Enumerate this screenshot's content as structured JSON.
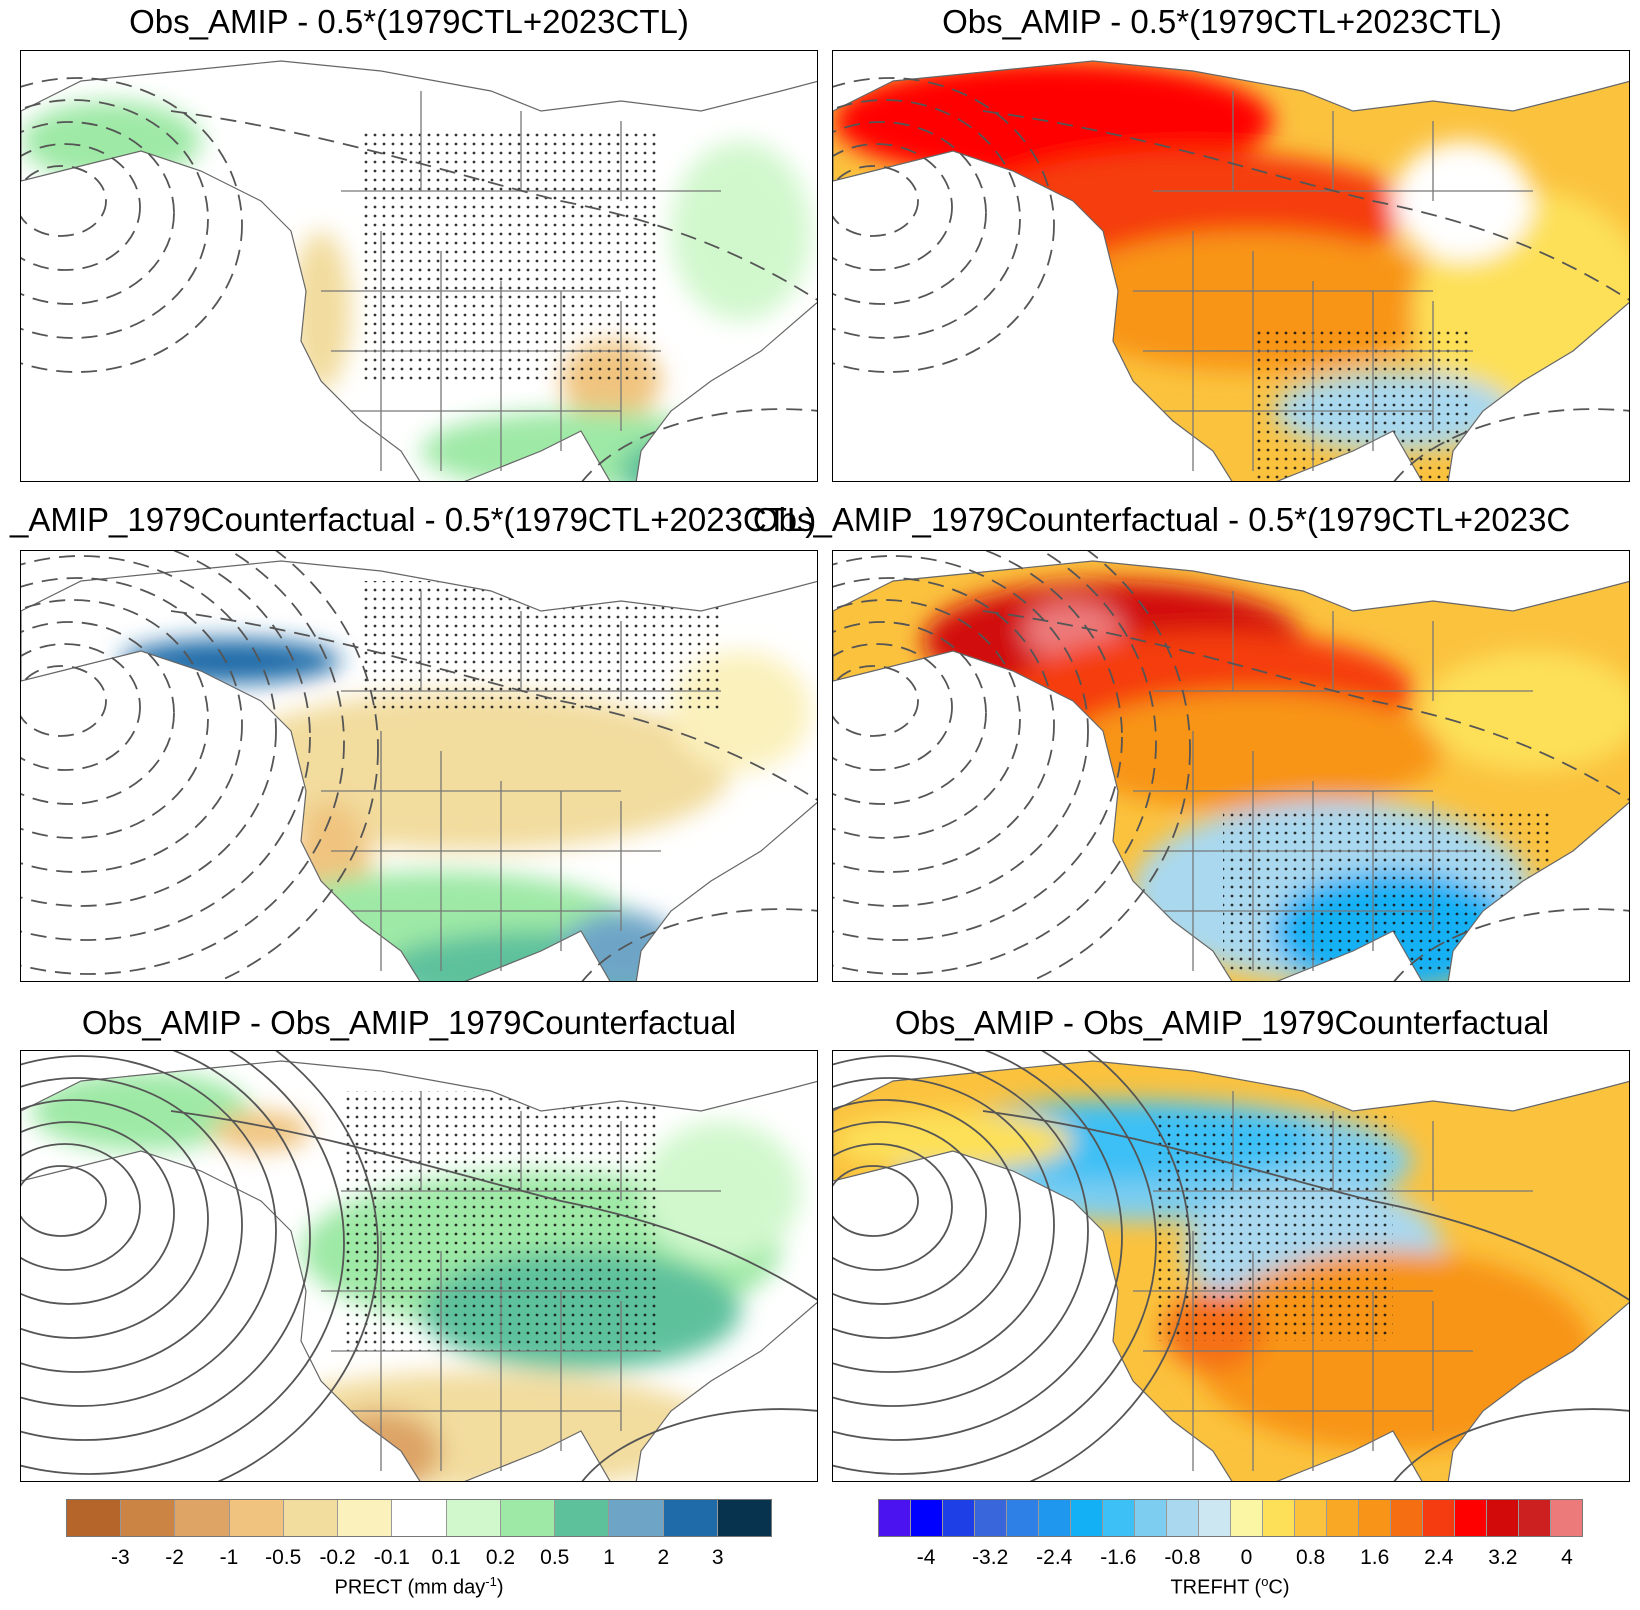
{
  "titles": {
    "r1_left": "Obs_AMIP - 0.5*(1979CTL+2023CTL)",
    "r1_right": "Obs_AMIP - 0.5*(1979CTL+2023CTL)",
    "r2_left": "_AMIP_1979Counterfactual - 0.5*(1979CTL+2023CTL)",
    "r2_right": "Obs_AMIP_1979Counterfactual - 0.5*(1979CTL+2023C",
    "r3_left": "Obs_AMIP - Obs_AMIP_1979Counterfactual",
    "r3_right": "Obs_AMIP - Obs_AMIP_1979Counterfactual"
  },
  "legend_precip": {
    "label_main": "PRECT (mm day",
    "label_sup": "-1",
    "label_end": ")",
    "colors": [
      "#b5652a",
      "#cc8444",
      "#dda466",
      "#f0c47f",
      "#f2dc9e",
      "#fbf1bd",
      "#ffffff",
      "#d1f8cd",
      "#9ee9a6",
      "#5dc19c",
      "#6ea5c7",
      "#1f6aa8",
      "#08334f"
    ],
    "ticks": [
      "-3",
      "-2",
      "-1",
      "-0.5",
      "-0.2",
      "-0.1",
      "0.1",
      "0.2",
      "0.5",
      "1",
      "2",
      "3"
    ]
  },
  "legend_temp": {
    "label_main": "TREFHT (",
    "label_sup": "o",
    "label_end": "C)",
    "colors": [
      "#4a13f0",
      "#0000ff",
      "#1f3fe6",
      "#3a66dc",
      "#2e7fe6",
      "#1f97ee",
      "#13b0f5",
      "#3cc0f5",
      "#7ccdf0",
      "#a9d8ef",
      "#cce6f2",
      "#fbf6a4",
      "#fde058",
      "#fbc23e",
      "#f8a825",
      "#f89418",
      "#f56f12",
      "#f53c10",
      "#ff0000",
      "#d20a0a",
      "#cc1f1f",
      "#ec7a7a"
    ],
    "ticks": [
      "-4",
      "-3.2",
      "-2.4",
      "-1.6",
      "-0.8",
      "0",
      "0.8",
      "1.6",
      "2.4",
      "3.2",
      "4"
    ]
  }
}
